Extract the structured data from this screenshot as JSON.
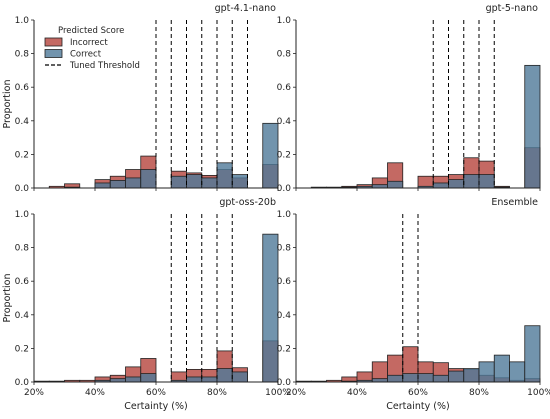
{
  "chart_data": [
    {
      "type": "bar",
      "title": "gpt-4.1-nano",
      "xlabel": "",
      "ylabel": "Proportion",
      "xlim": [
        20,
        100
      ],
      "ylim": [
        0,
        1.0
      ],
      "bin_width": 5,
      "thresholds": [
        60,
        65,
        70,
        75,
        80,
        85,
        90
      ],
      "series": [
        {
          "name": "Incorrect",
          "color": "#b5433c",
          "bins": [
            [
              25,
              0.01
            ],
            [
              30,
              0.025
            ],
            [
              40,
              0.05
            ],
            [
              45,
              0.07
            ],
            [
              50,
              0.11
            ],
            [
              55,
              0.19
            ],
            [
              65,
              0.1
            ],
            [
              70,
              0.09
            ],
            [
              75,
              0.075
            ],
            [
              80,
              0.11
            ],
            [
              85,
              0.06
            ],
            [
              95,
              0.14
            ]
          ]
        },
        {
          "name": "Correct",
          "color": "#4f7998",
          "bins": [
            [
              25,
              0.0
            ],
            [
              30,
              0.005
            ],
            [
              40,
              0.03
            ],
            [
              45,
              0.045
            ],
            [
              50,
              0.06
            ],
            [
              55,
              0.11
            ],
            [
              65,
              0.07
            ],
            [
              70,
              0.08
            ],
            [
              75,
              0.06
            ],
            [
              80,
              0.15
            ],
            [
              85,
              0.08
            ],
            [
              95,
              0.385
            ]
          ]
        }
      ]
    },
    {
      "type": "bar",
      "title": "gpt-5-nano",
      "xlabel": "",
      "ylabel": "",
      "xlim": [
        20,
        100
      ],
      "ylim": [
        0,
        1.0
      ],
      "bin_width": 5,
      "thresholds": [
        65,
        70,
        75,
        80,
        85
      ],
      "series": [
        {
          "name": "Incorrect",
          "color": "#b5433c",
          "bins": [
            [
              25,
              0.005
            ],
            [
              30,
              0.005
            ],
            [
              35,
              0.01
            ],
            [
              40,
              0.02
            ],
            [
              45,
              0.06
            ],
            [
              50,
              0.15
            ],
            [
              60,
              0.07
            ],
            [
              65,
              0.07
            ],
            [
              70,
              0.08
            ],
            [
              75,
              0.18
            ],
            [
              80,
              0.16
            ],
            [
              85,
              0.01
            ],
            [
              95,
              0.24
            ]
          ]
        },
        {
          "name": "Correct",
          "color": "#4f7998",
          "bins": [
            [
              35,
              0.005
            ],
            [
              40,
              0.01
            ],
            [
              45,
              0.02
            ],
            [
              50,
              0.04
            ],
            [
              60,
              0.01
            ],
            [
              65,
              0.03
            ],
            [
              70,
              0.05
            ],
            [
              75,
              0.08
            ],
            [
              80,
              0.08
            ],
            [
              85,
              0.005
            ],
            [
              95,
              0.73
            ]
          ]
        }
      ]
    },
    {
      "type": "bar",
      "title": "gpt-oss-20b",
      "xlabel": "Certainty (%)",
      "ylabel": "Proportion",
      "xlim": [
        20,
        100
      ],
      "ylim": [
        0,
        1.0
      ],
      "bin_width": 5,
      "thresholds": [
        65,
        70,
        75,
        80,
        85
      ],
      "series": [
        {
          "name": "Incorrect",
          "color": "#b5433c",
          "bins": [
            [
              20,
              0.005
            ],
            [
              25,
              0.005
            ],
            [
              30,
              0.01
            ],
            [
              35,
              0.01
            ],
            [
              40,
              0.03
            ],
            [
              45,
              0.04
            ],
            [
              50,
              0.09
            ],
            [
              55,
              0.14
            ],
            [
              65,
              0.06
            ],
            [
              70,
              0.075
            ],
            [
              75,
              0.075
            ],
            [
              80,
              0.185
            ],
            [
              85,
              0.085
            ],
            [
              95,
              0.245
            ]
          ]
        },
        {
          "name": "Correct",
          "color": "#4f7998",
          "bins": [
            [
              40,
              0.01
            ],
            [
              45,
              0.02
            ],
            [
              50,
              0.03
            ],
            [
              55,
              0.05
            ],
            [
              65,
              0.01
            ],
            [
              70,
              0.03
            ],
            [
              75,
              0.03
            ],
            [
              80,
              0.08
            ],
            [
              85,
              0.06
            ],
            [
              95,
              0.88
            ]
          ]
        }
      ]
    },
    {
      "type": "bar",
      "title": "Ensemble",
      "xlabel": "Certainty (%)",
      "ylabel": "",
      "xlim": [
        20,
        100
      ],
      "ylim": [
        0,
        1.0
      ],
      "bin_width": 5,
      "thresholds": [
        55,
        60
      ],
      "series": [
        {
          "name": "Incorrect",
          "color": "#b5433c",
          "bins": [
            [
              20,
              0.005
            ],
            [
              25,
              0.005
            ],
            [
              30,
              0.01
            ],
            [
              35,
              0.03
            ],
            [
              40,
              0.06
            ],
            [
              45,
              0.12
            ],
            [
              50,
              0.16
            ],
            [
              55,
              0.21
            ],
            [
              60,
              0.12
            ],
            [
              65,
              0.115
            ],
            [
              70,
              0.08
            ],
            [
              75,
              0.075
            ],
            [
              80,
              0.04
            ],
            [
              85,
              0.025
            ],
            [
              90,
              0.01
            ],
            [
              95,
              0.02
            ]
          ]
        },
        {
          "name": "Correct",
          "color": "#4f7998",
          "bins": [
            [
              35,
              0.005
            ],
            [
              40,
              0.01
            ],
            [
              45,
              0.02
            ],
            [
              50,
              0.04
            ],
            [
              55,
              0.05
            ],
            [
              60,
              0.05
            ],
            [
              65,
              0.04
            ],
            [
              70,
              0.065
            ],
            [
              75,
              0.08
            ],
            [
              80,
              0.12
            ],
            [
              85,
              0.16
            ],
            [
              90,
              0.12
            ],
            [
              95,
              0.335
            ]
          ]
        }
      ]
    }
  ],
  "shared": {
    "xticks": [
      20,
      40,
      60,
      80,
      100
    ],
    "xtick_labels": [
      "20%",
      "40%",
      "60%",
      "80%",
      "100%"
    ],
    "yticks": [
      0.0,
      0.2,
      0.4,
      0.6,
      0.8,
      1.0
    ],
    "ytick_labels": [
      "0.0",
      "0.2",
      "0.4",
      "0.6",
      "0.8",
      "1.0"
    ]
  },
  "legend": {
    "title": "Predicted Score",
    "placement": "top-left of first panel",
    "items": [
      {
        "label": "Incorrect",
        "kind": "patch",
        "color": "#b5433c"
      },
      {
        "label": "Correct",
        "kind": "patch",
        "color": "#4f7998"
      },
      {
        "label": "Tuned Threshold",
        "kind": "dashed-line",
        "color": "#000000"
      }
    ]
  }
}
